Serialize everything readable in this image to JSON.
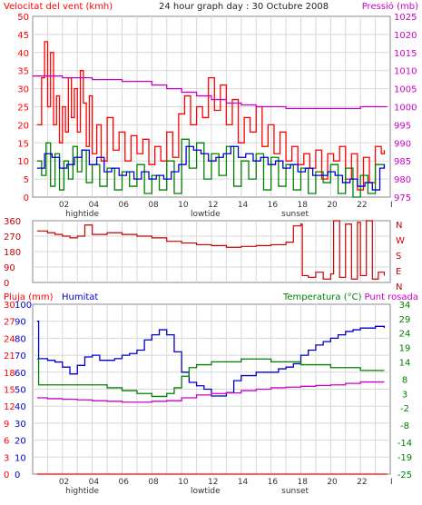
{
  "title": "24 hour graph day : 30 Octubre 2008",
  "colors": {
    "red": "#ff0000",
    "blue": "#0000cc",
    "green": "#008000",
    "magenta": "#cc00cc",
    "darkred": "#cc0000",
    "grid": "#d8d8d8",
    "frame": "#888888"
  },
  "x_ticks": [
    "02",
    "04",
    "06",
    "08",
    "10",
    "12",
    "14",
    "16",
    "18",
    "20",
    "22",
    "I"
  ],
  "markers": {
    "hightide": "hightide",
    "lowtide": "lowtide",
    "sunset": "sunset"
  },
  "chart_data": [
    {
      "type": "line",
      "id": "wind",
      "left_label": "Velocitat del vent (kmh)",
      "right_label": "Pressió (mb)",
      "left_ticks": [
        0,
        5,
        10,
        15,
        20,
        25,
        30,
        35,
        40,
        45,
        50
      ],
      "right_ticks": [
        975,
        980,
        985,
        990,
        995,
        1000,
        1005,
        1010,
        1015,
        1020,
        1025
      ],
      "ylim_left": [
        0,
        50
      ],
      "ylim_right": [
        975,
        1025
      ],
      "xlim_hours": [
        0,
        24
      ],
      "series": [
        {
          "color": "red",
          "axis": "left",
          "x": [
            0.3,
            0.6,
            0.8,
            1.0,
            1.2,
            1.4,
            1.6,
            1.8,
            2.0,
            2.2,
            2.4,
            2.6,
            2.8,
            3.0,
            3.2,
            3.4,
            3.6,
            3.8,
            4.0,
            4.3,
            4.6,
            5.0,
            5.4,
            5.8,
            6.2,
            6.6,
            7.0,
            7.4,
            7.8,
            8.2,
            8.6,
            9.0,
            9.4,
            9.8,
            10.2,
            10.6,
            11.0,
            11.4,
            11.8,
            12.2,
            12.6,
            13.0,
            13.4,
            13.8,
            14.2,
            14.6,
            15.0,
            15.4,
            15.8,
            16.2,
            16.6,
            17.0,
            17.4,
            17.8,
            18.2,
            18.6,
            19.0,
            19.4,
            19.8,
            20.2,
            20.6,
            21.0,
            21.4,
            21.8,
            22.2,
            22.6,
            23.0,
            23.4,
            23.6
          ],
          "values": [
            20,
            33,
            43,
            25,
            40,
            20,
            28,
            15,
            25,
            18,
            33,
            22,
            30,
            18,
            35,
            26,
            14,
            28,
            12,
            20,
            10,
            22,
            13,
            18,
            10,
            17,
            12,
            16,
            9,
            14,
            10,
            18,
            11,
            23,
            28,
            20,
            25,
            22,
            33,
            24,
            31,
            20,
            27,
            15,
            22,
            18,
            25,
            14,
            20,
            12,
            18,
            10,
            14,
            9,
            12,
            8,
            13,
            5,
            12,
            10,
            14,
            5,
            12,
            2,
            11,
            4,
            14,
            12,
            13
          ]
        },
        {
          "color": "green",
          "axis": "left",
          "x": [
            0.3,
            0.6,
            0.9,
            1.2,
            1.5,
            1.8,
            2.1,
            2.4,
            2.7,
            3.0,
            3.3,
            3.6,
            4.0,
            4.5,
            5.0,
            5.5,
            6.0,
            6.5,
            7.0,
            7.5,
            8.0,
            8.5,
            9.0,
            9.5,
            10.0,
            10.5,
            11.0,
            11.5,
            12.0,
            12.5,
            13.0,
            13.5,
            14.0,
            14.5,
            15.0,
            15.5,
            16.0,
            16.5,
            17.0,
            17.5,
            18.0,
            18.5,
            19.0,
            19.5,
            20.0,
            20.5,
            21.0,
            21.5,
            22.0,
            22.5,
            23.0,
            23.6
          ],
          "values": [
            10,
            6,
            15,
            3,
            12,
            2,
            10,
            5,
            14,
            7,
            13,
            4,
            9,
            3,
            8,
            2,
            7,
            3,
            9,
            1,
            6,
            2,
            10,
            1,
            16,
            8,
            15,
            5,
            12,
            6,
            14,
            3,
            10,
            5,
            12,
            2,
            11,
            3,
            9,
            2,
            8,
            1,
            7,
            4,
            9,
            1,
            8,
            0,
            6,
            1,
            9,
            8
          ]
        },
        {
          "color": "blue",
          "axis": "left",
          "x": [
            0.3,
            0.8,
            1.3,
            1.8,
            2.3,
            2.8,
            3.3,
            3.8,
            4.3,
            4.8,
            5.3,
            5.8,
            6.3,
            6.8,
            7.3,
            7.8,
            8.3,
            8.8,
            9.3,
            9.8,
            10.3,
            10.8,
            11.3,
            11.8,
            12.3,
            12.8,
            13.3,
            13.8,
            14.3,
            14.8,
            15.3,
            15.8,
            16.3,
            16.8,
            17.3,
            17.8,
            18.3,
            18.8,
            19.3,
            19.8,
            20.3,
            20.8,
            21.3,
            21.8,
            22.3,
            22.8,
            23.3,
            23.6
          ],
          "values": [
            8,
            12,
            11,
            8,
            9,
            11,
            13,
            9,
            11,
            7,
            8,
            6,
            7,
            5,
            7,
            5,
            6,
            5,
            7,
            9,
            14,
            13,
            12,
            10,
            11,
            12,
            14,
            11,
            12,
            10,
            11,
            9,
            10,
            8,
            9,
            7,
            8,
            6,
            6,
            7,
            6,
            4,
            5,
            3,
            4,
            2,
            8,
            9
          ]
        },
        {
          "color": "magenta",
          "axis": "right",
          "x": [
            0.0,
            1.0,
            2.0,
            3.0,
            4.0,
            5.0,
            6.0,
            7.0,
            8.0,
            9.0,
            10.0,
            11.0,
            12.0,
            13.0,
            14.0,
            15.0,
            16.0,
            17.0,
            18.0,
            19.0,
            20.0,
            21.0,
            22.0,
            23.0,
            23.8
          ],
          "values": [
            1008.5,
            1008.5,
            1008,
            1008,
            1007.5,
            1007.5,
            1007,
            1007,
            1006,
            1005,
            1004,
            1003,
            1002,
            1001,
            1000.5,
            1000,
            1000,
            999.5,
            999.5,
            999.5,
            999.5,
            999.5,
            1000,
            1000,
            1000
          ]
        }
      ]
    },
    {
      "type": "line",
      "id": "direction",
      "left_ticks": [
        0,
        90,
        180,
        270,
        360
      ],
      "right_labels": [
        "N",
        "W",
        "S",
        "E",
        "N"
      ],
      "ylim": [
        0,
        360
      ],
      "xlim_hours": [
        0,
        24
      ],
      "series": [
        {
          "color": "darkred",
          "x": [
            0.3,
            1.0,
            1.5,
            2.0,
            2.5,
            3.0,
            3.5,
            4.0,
            5.0,
            6.0,
            7.0,
            8.0,
            9.0,
            10.0,
            11.0,
            12.0,
            13.0,
            14.0,
            15.0,
            16.0,
            17.0,
            17.5,
            18.0,
            18.1,
            18.5,
            19.0,
            19.5,
            20.0,
            20.2,
            20.6,
            21.0,
            21.4,
            21.8,
            22.0,
            22.4,
            22.8,
            23.2,
            23.6
          ],
          "values": [
            300,
            290,
            280,
            270,
            260,
            270,
            335,
            280,
            290,
            280,
            270,
            260,
            240,
            230,
            220,
            215,
            205,
            210,
            215,
            220,
            235,
            330,
            340,
            40,
            30,
            60,
            20,
            50,
            360,
            30,
            340,
            20,
            350,
            40,
            360,
            20,
            60,
            40
          ]
        }
      ]
    },
    {
      "type": "line",
      "id": "temperature",
      "left_label": "Pluja (mm)",
      "left_label2": "Humitat",
      "right_label": "Temperatura (°C)",
      "right_label2": "Punt rosada",
      "rain_ticks": [
        0,
        3,
        6,
        9,
        12,
        15,
        18,
        21,
        24,
        27,
        30
      ],
      "humidity_ticks": [
        0,
        10,
        20,
        30,
        40,
        50,
        60,
        70,
        80,
        90,
        100
      ],
      "temp_ticks": [
        -25,
        -19,
        -14,
        -8,
        -2,
        3,
        8,
        14,
        19,
        24,
        29,
        34
      ],
      "ylim_humidity": [
        0,
        100
      ],
      "ylim_temp": [
        -25,
        34
      ],
      "xlim_hours": [
        0,
        24
      ],
      "series": [
        {
          "color": "blue",
          "axis": "humidity",
          "x": [
            0.3,
            0.4,
            0.5,
            1.0,
            1.5,
            2.0,
            2.5,
            3.0,
            3.5,
            4.0,
            4.5,
            5.0,
            5.5,
            6.0,
            6.5,
            7.0,
            7.5,
            8.0,
            8.5,
            9.0,
            9.5,
            10.0,
            10.5,
            11.0,
            11.5,
            12.0,
            12.5,
            13.0,
            13.5,
            14.0,
            14.5,
            15.0,
            15.5,
            16.0,
            16.5,
            17.0,
            17.5,
            18.0,
            18.5,
            19.0,
            19.5,
            20.0,
            20.5,
            21.0,
            21.5,
            22.0,
            22.5,
            23.0,
            23.6
          ],
          "values": [
            90,
            68,
            68,
            67,
            66,
            63,
            59,
            64,
            69,
            70,
            67,
            67,
            68,
            70,
            71,
            73,
            79,
            82,
            85,
            82,
            72,
            60,
            54,
            52,
            50,
            46,
            46,
            48,
            55,
            58,
            58,
            60,
            60,
            60,
            62,
            63,
            65,
            70,
            73,
            76,
            78,
            80,
            82,
            84,
            85,
            86,
            86,
            87,
            86
          ]
        },
        {
          "color": "green",
          "axis": "temp",
          "x": [
            0.3,
            0.4,
            0.5,
            1.0,
            2.0,
            3.0,
            4.0,
            5.0,
            6.0,
            7.0,
            8.0,
            8.5,
            9.0,
            9.5,
            10.0,
            10.5,
            11.0,
            12.0,
            13.0,
            14.0,
            15.0,
            16.0,
            17.0,
            18.0,
            19.0,
            20.0,
            21.0,
            22.0,
            23.0,
            23.6
          ],
          "values": [
            15,
            6,
            6,
            6,
            6,
            6,
            6,
            5,
            4,
            3,
            2,
            2,
            3,
            5,
            9,
            12,
            13,
            14,
            14,
            15,
            15,
            14,
            14,
            13,
            13,
            12,
            12,
            11,
            11,
            11
          ]
        },
        {
          "color": "magenta",
          "axis": "temp",
          "x": [
            0.3,
            1.0,
            2.0,
            3.0,
            4.0,
            5.0,
            6.0,
            7.0,
            8.0,
            9.0,
            10.0,
            11.0,
            12.0,
            13.0,
            14.0,
            15.0,
            16.0,
            17.0,
            18.0,
            19.0,
            20.0,
            21.0,
            22.0,
            23.0,
            23.6
          ],
          "values": [
            1.5,
            1.2,
            1.0,
            0.8,
            0.5,
            0.3,
            0.0,
            0.0,
            0.3,
            0.5,
            1.5,
            2.5,
            3,
            3.2,
            4,
            4.5,
            5,
            5.2,
            5.5,
            5.8,
            6,
            6.5,
            7,
            7,
            7
          ]
        },
        {
          "color": "red",
          "axis": "rain",
          "x": [
            0.3,
            23.8
          ],
          "values": [
            0,
            0
          ]
        }
      ]
    }
  ]
}
